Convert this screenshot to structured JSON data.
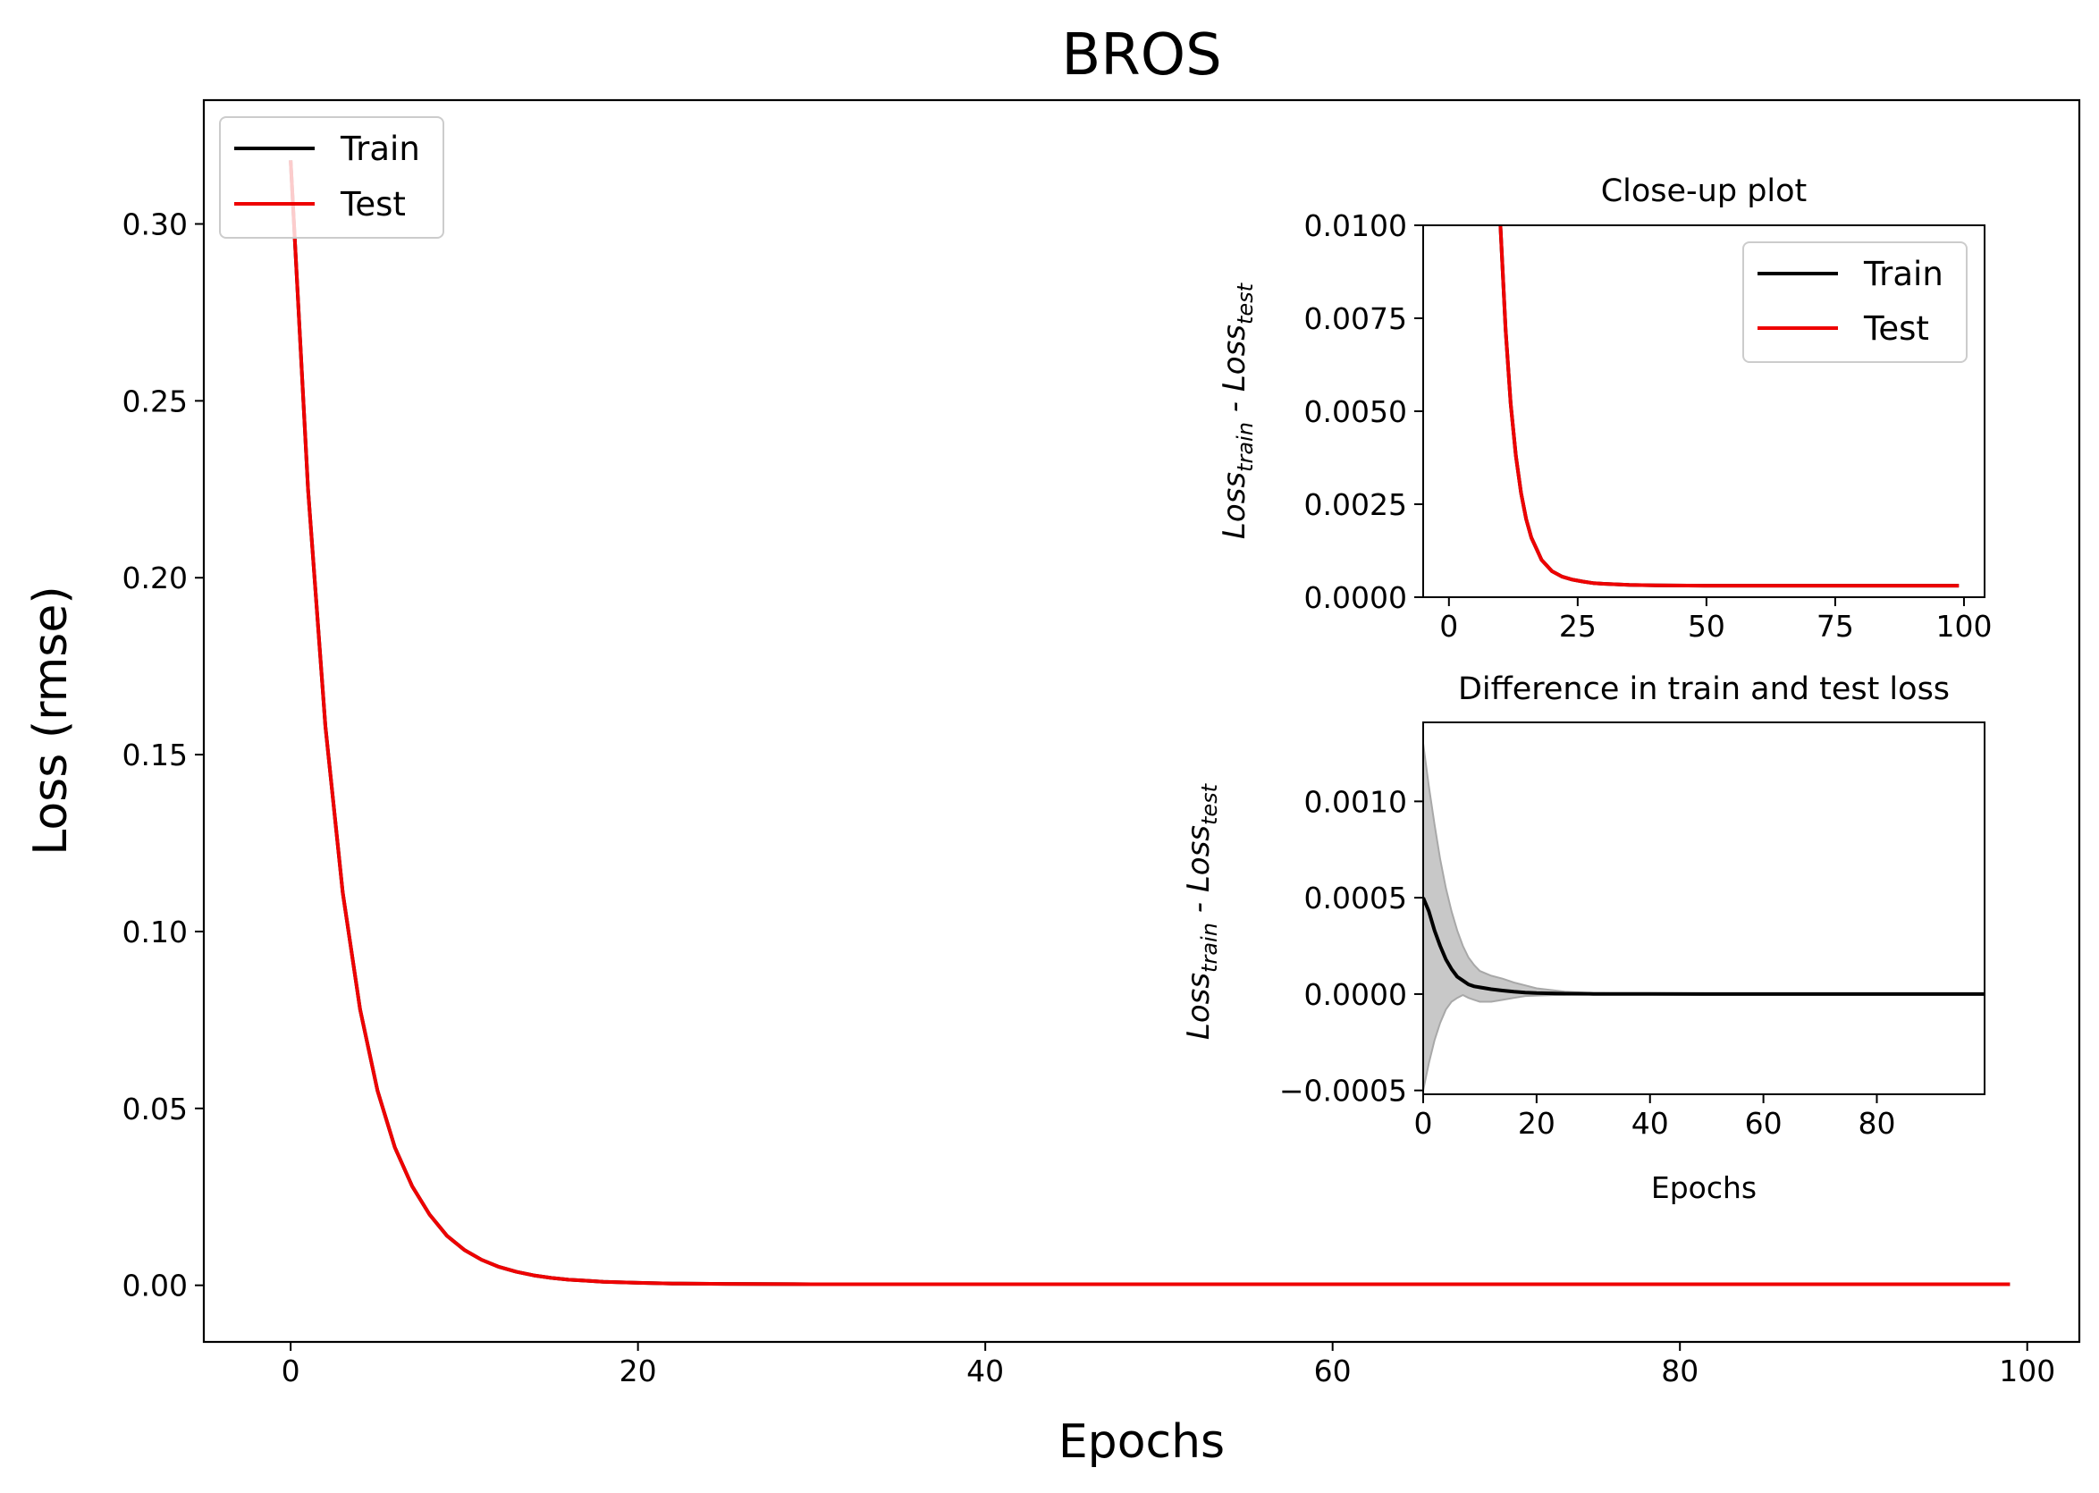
{
  "chart_data": [
    {
      "id": "main",
      "type": "line",
      "title": "BROS",
      "xlabel": "Epochs",
      "ylabel": "Loss (rmse)",
      "xlim": [
        -5,
        103
      ],
      "ylim": [
        -0.016,
        0.335
      ],
      "xticks": [
        0,
        20,
        40,
        60,
        80,
        100
      ],
      "xtick_labels": [
        "0",
        "20",
        "40",
        "60",
        "80",
        "100"
      ],
      "yticks": [
        0.0,
        0.05,
        0.1,
        0.15,
        0.2,
        0.25,
        0.3
      ],
      "ytick_labels": [
        "0.00",
        "0.05",
        "0.10",
        "0.15",
        "0.20",
        "0.25",
        "0.30"
      ],
      "grid": false,
      "legend_position": "upper-left",
      "series": [
        {
          "name": "Train",
          "color": "#000000",
          "x": [
            0,
            1,
            2,
            3,
            4,
            5,
            6,
            7,
            8,
            9,
            10,
            11,
            12,
            13,
            14,
            15,
            16,
            17,
            18,
            20,
            22,
            25,
            30,
            35,
            40,
            50,
            60,
            70,
            80,
            90,
            99
          ],
          "y": [
            0.318,
            0.225,
            0.158,
            0.111,
            0.078,
            0.055,
            0.039,
            0.028,
            0.02,
            0.014,
            0.01,
            0.0072,
            0.0052,
            0.0038,
            0.0028,
            0.0021,
            0.0016,
            0.0013,
            0.001,
            0.0007,
            0.0005,
            0.0004,
            0.0003,
            0.0003,
            0.0003,
            0.0003,
            0.0003,
            0.0003,
            0.0003,
            0.0003,
            0.0003
          ]
        },
        {
          "name": "Test",
          "color": "#ee0000",
          "x": [
            0,
            1,
            2,
            3,
            4,
            5,
            6,
            7,
            8,
            9,
            10,
            11,
            12,
            13,
            14,
            15,
            16,
            17,
            18,
            20,
            22,
            25,
            30,
            35,
            40,
            50,
            60,
            70,
            80,
            90,
            99
          ],
          "y": [
            0.318,
            0.225,
            0.158,
            0.111,
            0.078,
            0.055,
            0.039,
            0.028,
            0.02,
            0.014,
            0.01,
            0.0072,
            0.0052,
            0.0038,
            0.0028,
            0.0021,
            0.0016,
            0.0013,
            0.001,
            0.0007,
            0.0005,
            0.0004,
            0.0003,
            0.0003,
            0.0003,
            0.0003,
            0.0003,
            0.0003,
            0.0003,
            0.0003,
            0.0003
          ]
        }
      ]
    },
    {
      "id": "inset_top",
      "type": "line",
      "title": "Close-up plot",
      "xlabel": "",
      "ylabel_main": "Loss",
      "ylabel_sub1": "train",
      "ylabel_sep": " - Loss",
      "ylabel_sub2": "test",
      "xlim": [
        -5,
        104
      ],
      "ylim": [
        0,
        0.01
      ],
      "xticks": [
        0,
        25,
        50,
        75,
        100
      ],
      "xtick_labels": [
        "0",
        "25",
        "50",
        "75",
        "100"
      ],
      "yticks": [
        0,
        0.0025,
        0.005,
        0.0075,
        0.01
      ],
      "ytick_labels": [
        "0.0000",
        "0.0025",
        "0.0050",
        "0.0075",
        "0.0100"
      ],
      "grid": false,
      "legend_position": "upper-right",
      "series": [
        {
          "name": "Train",
          "color": "#000000",
          "x": [
            10,
            11,
            12,
            13,
            14,
            15,
            16,
            17,
            18,
            19,
            20,
            22,
            24,
            26,
            28,
            30,
            35,
            40,
            50,
            60,
            70,
            80,
            90,
            99
          ],
          "y": [
            0.01,
            0.0072,
            0.0052,
            0.0038,
            0.0028,
            0.0021,
            0.0016,
            0.0013,
            0.001,
            0.00085,
            0.0007,
            0.00055,
            0.00047,
            0.00042,
            0.00038,
            0.00036,
            0.00033,
            0.00032,
            0.00031,
            0.00031,
            0.00031,
            0.00031,
            0.00031,
            0.00031
          ]
        },
        {
          "name": "Test",
          "color": "#ee0000",
          "x": [
            10,
            11,
            12,
            13,
            14,
            15,
            16,
            17,
            18,
            19,
            20,
            22,
            24,
            26,
            28,
            30,
            35,
            40,
            50,
            60,
            70,
            80,
            90,
            99
          ],
          "y": [
            0.01,
            0.0072,
            0.0052,
            0.0038,
            0.0028,
            0.0021,
            0.0016,
            0.0013,
            0.001,
            0.00085,
            0.0007,
            0.00055,
            0.00047,
            0.00042,
            0.00038,
            0.00036,
            0.00033,
            0.00032,
            0.00031,
            0.00031,
            0.00031,
            0.00031,
            0.00031,
            0.00031
          ]
        }
      ]
    },
    {
      "id": "inset_bottom",
      "type": "line",
      "title": "Difference in train and test loss",
      "xlabel": "Epochs",
      "ylabel_main": "Loss",
      "ylabel_sub1": "train",
      "ylabel_sep": " - Loss",
      "ylabel_sub2": "test",
      "xlim": [
        0,
        99
      ],
      "ylim": [
        -0.00052,
        0.00141
      ],
      "xticks": [
        0,
        20,
        40,
        60,
        80
      ],
      "xtick_labels": [
        "0",
        "20",
        "40",
        "60",
        "80"
      ],
      "yticks": [
        -0.0005,
        0.0,
        0.0005,
        0.001
      ],
      "ytick_labels": [
        "−0.0005",
        "0.0000",
        "0.0005",
        "0.0010"
      ],
      "grid": false,
      "band_color": "#c8c8c8",
      "series": [
        {
          "name": "mean",
          "color": "#000000",
          "x": [
            0,
            1,
            2,
            3,
            4,
            5,
            6,
            7,
            8,
            9,
            10,
            12,
            14,
            16,
            18,
            20,
            25,
            30,
            40,
            50,
            60,
            70,
            80,
            90,
            99
          ],
          "y": [
            0.0005,
            0.00043,
            0.00033,
            0.00025,
            0.00018,
            0.00013,
            9e-05,
            7e-05,
            5e-05,
            4e-05,
            3.5e-05,
            2.5e-05,
            1.8e-05,
            1.2e-05,
            8e-06,
            5e-06,
            2e-06,
            1e-06,
            5e-07,
            3e-07,
            2e-07,
            1e-07,
            0.0,
            0.0,
            0.0
          ],
          "upper": [
            0.0013,
            0.00108,
            0.00088,
            0.0007,
            0.00055,
            0.00043,
            0.00033,
            0.00025,
            0.00019,
            0.00015,
            0.00012,
            9.5e-05,
            8e-05,
            6e-05,
            4.5e-05,
            3e-05,
            1.2e-05,
            5e-06,
            2e-06,
            1e-06,
            5e-07,
            3e-07,
            2e-07,
            1e-07,
            1e-07
          ],
          "lower": [
            -0.0005,
            -0.00036,
            -0.00024,
            -0.00015,
            -8e-05,
            -4e-05,
            -2e-05,
            -5e-06,
            -2e-05,
            -3e-05,
            -4e-05,
            -4e-05,
            -3e-05,
            -2e-05,
            -1e-05,
            -8e-06,
            -3e-06,
            -1e-06,
            -5e-07,
            -3e-07,
            -2e-07,
            -1e-07,
            0.0,
            0.0,
            0.0
          ]
        }
      ]
    }
  ]
}
